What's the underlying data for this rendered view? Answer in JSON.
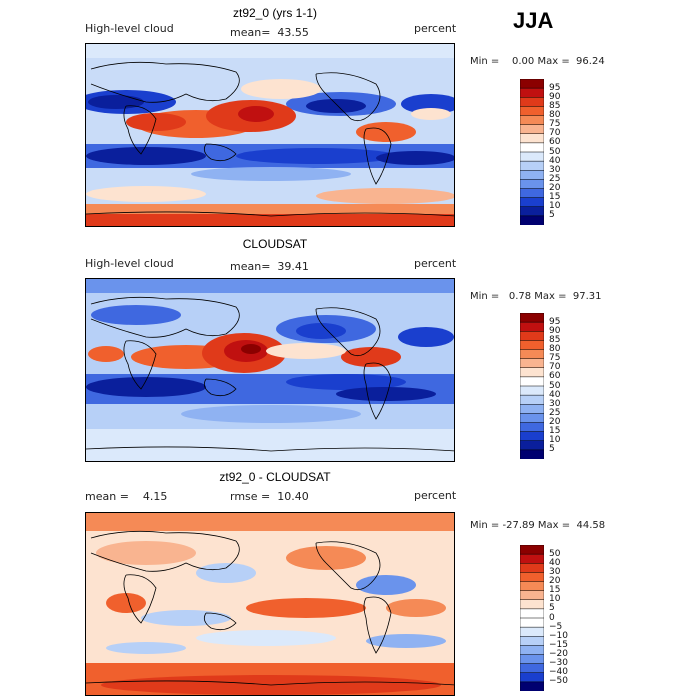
{
  "season": "JJA",
  "panels": [
    {
      "title": "zt92_0 (yrs 1-1)",
      "left_label": "High-level cloud",
      "stat_label": "mean=  43.55",
      "units": "percent",
      "minmax": "Min =    0.00 Max =  96.24",
      "colorbar": {
        "labels": [
          "95",
          "90",
          "85",
          "80",
          "75",
          "70",
          "60",
          "50",
          "40",
          "30",
          "25",
          "20",
          "15",
          "10",
          "5"
        ],
        "colors": [
          "#8b0000",
          "#c01010",
          "#e03a1a",
          "#f0602d",
          "#f58a56",
          "#f9b490",
          "#fde3d0",
          "#ffffff",
          "#dbe9fb",
          "#b7d0f7",
          "#8fb2f2",
          "#6a93ec",
          "#3f68e0",
          "#1a3fce",
          "#0a1f9c",
          "#000070"
        ]
      }
    },
    {
      "title": "CLOUDSAT",
      "left_label": "High-level cloud",
      "stat_label": "mean=  39.41",
      "units": "percent",
      "minmax": "Min =   0.78 Max =  97.31",
      "colorbar": {
        "labels": [
          "95",
          "90",
          "85",
          "80",
          "75",
          "70",
          "60",
          "50",
          "40",
          "30",
          "25",
          "20",
          "15",
          "10",
          "5"
        ],
        "colors": [
          "#8b0000",
          "#c01010",
          "#e03a1a",
          "#f0602d",
          "#f58a56",
          "#f9b490",
          "#fde3d0",
          "#ffffff",
          "#dbe9fb",
          "#b7d0f7",
          "#8fb2f2",
          "#6a93ec",
          "#3f68e0",
          "#1a3fce",
          "#0a1f9c",
          "#000070"
        ]
      }
    },
    {
      "title": "zt92_0 - CLOUDSAT",
      "left_label": "mean =    4.15",
      "stat_label": "rmse =  10.40",
      "units": "percent",
      "minmax": "Min = -27.89 Max =  44.58",
      "colorbar": {
        "labels": [
          "50",
          "40",
          "30",
          "20",
          "15",
          "10",
          "5",
          "0",
          "−5",
          "−10",
          "−15",
          "−20",
          "−30",
          "−40",
          "−50"
        ],
        "colors": [
          "#8b0000",
          "#c01010",
          "#e03a1a",
          "#f0602d",
          "#f58a56",
          "#f9b490",
          "#fde3d0",
          "#ffffff",
          "#ffffff",
          "#dbe9fb",
          "#b7d0f7",
          "#8fb2f2",
          "#6a93ec",
          "#3f68e0",
          "#1a3fce",
          "#000070"
        ]
      }
    }
  ],
  "chart_data": [
    {
      "type": "heatmap",
      "title": "zt92_0 (yrs 1-1)",
      "variable": "High-level cloud",
      "units": "percent",
      "season": "JJA",
      "mean": 43.55,
      "min": 0.0,
      "max": 96.24,
      "contour_levels": [
        5,
        10,
        15,
        20,
        25,
        30,
        40,
        50,
        60,
        70,
        75,
        80,
        85,
        90,
        95
      ]
    },
    {
      "type": "heatmap",
      "title": "CLOUDSAT",
      "variable": "High-level cloud",
      "units": "percent",
      "season": "JJA",
      "mean": 39.41,
      "min": 0.78,
      "max": 97.31,
      "contour_levels": [
        5,
        10,
        15,
        20,
        25,
        30,
        40,
        50,
        60,
        70,
        75,
        80,
        85,
        90,
        95
      ]
    },
    {
      "type": "heatmap",
      "title": "zt92_0 - CLOUDSAT",
      "units": "percent",
      "season": "JJA",
      "mean": 4.15,
      "rmse": 10.4,
      "min": -27.89,
      "max": 44.58,
      "contour_levels": [
        -50,
        -40,
        -30,
        -20,
        -15,
        -10,
        -5,
        0,
        5,
        10,
        15,
        20,
        30,
        40,
        50
      ]
    }
  ]
}
